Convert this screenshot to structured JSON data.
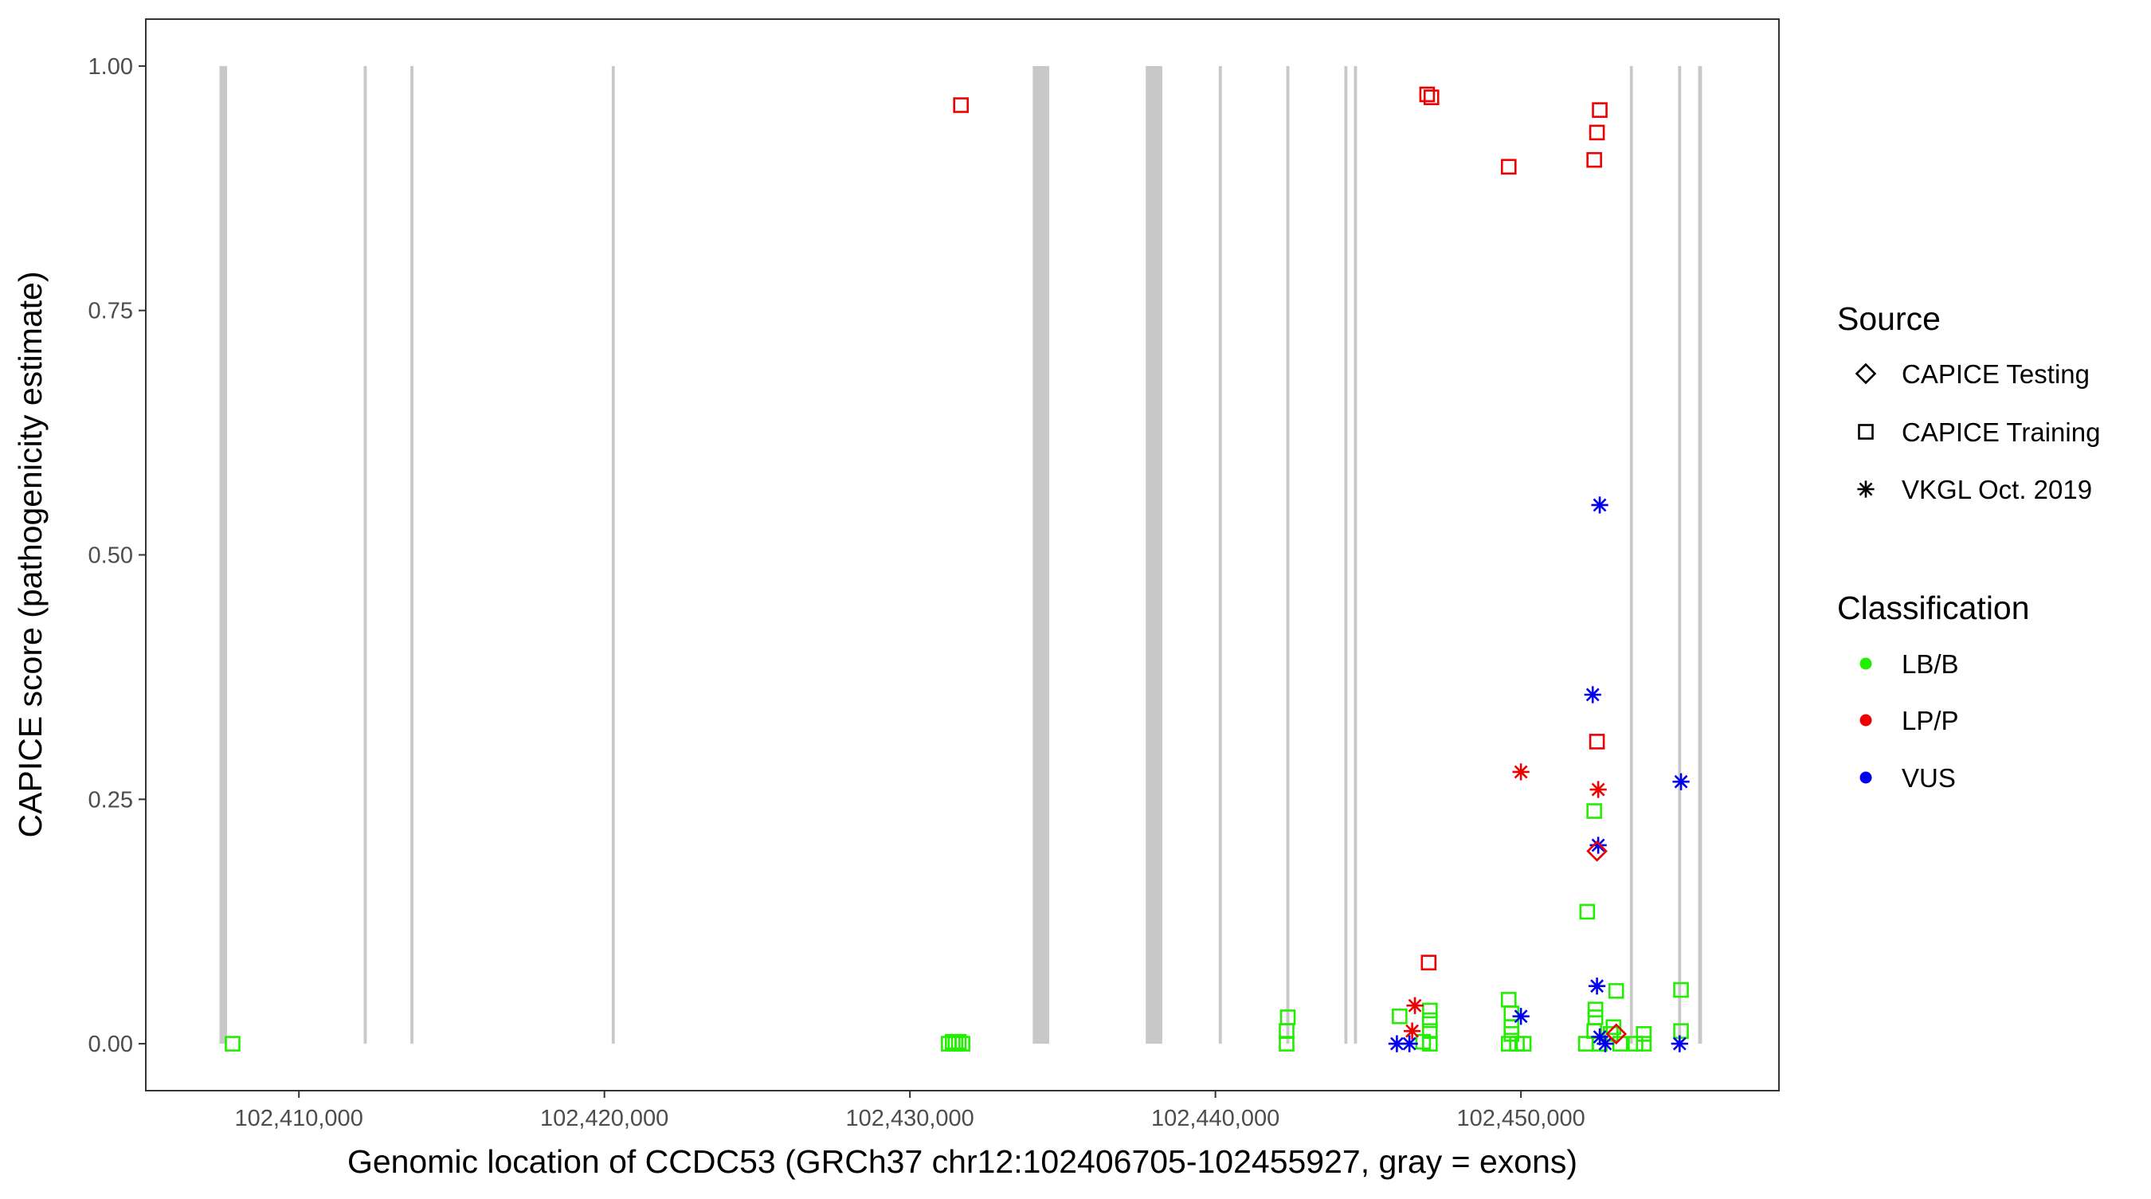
{
  "chart_data": {
    "type": "scatter",
    "xlabel": "Genomic location of CCDC53 (GRCh37 chr12:102406705-102455927, gray = exons)",
    "ylabel": "CAPICE score (pathogenicity estimate)",
    "xlim": [
      102404988,
      102458446
    ],
    "ylim": [
      -0.048,
      1.048
    ],
    "x_ticks": [
      102410000,
      102420000,
      102430000,
      102440000,
      102450000
    ],
    "x_tick_labels": [
      "102,410,000",
      "102,420,000",
      "102,430,000",
      "102,440,000",
      "102,450,000"
    ],
    "y_ticks": [
      0,
      0.25,
      0.5,
      0.75,
      1.0
    ],
    "y_tick_labels": [
      "0.00",
      "0.25",
      "0.50",
      "0.75",
      "1.00"
    ],
    "grid": false,
    "exons": [
      [
        102407400,
        102407650
      ],
      [
        102412120,
        102412220
      ],
      [
        102413650,
        102413750
      ],
      [
        102420240,
        102420340
      ],
      [
        102434020,
        102434560
      ],
      [
        102437720,
        102438260
      ],
      [
        102440110,
        102440210
      ],
      [
        102442320,
        102442420
      ],
      [
        102444220,
        102444320
      ],
      [
        102444535,
        102444635
      ],
      [
        102453565,
        102453665
      ],
      [
        102455145,
        102455245
      ],
      [
        102455800,
        102455927
      ]
    ],
    "colors": {
      "LB/B": "#22ee00",
      "LP/P": "#ee0000",
      "VUS": "#0000ee",
      "exon": "#c8c8c8"
    },
    "legend": {
      "placement": "right",
      "source_title": "Source",
      "source_items": [
        {
          "label": "CAPICE Testing",
          "shape": "diamond"
        },
        {
          "label": "CAPICE Training",
          "shape": "square"
        },
        {
          "label": "VKGL Oct. 2019",
          "shape": "asterisk"
        }
      ],
      "class_title": "Classification",
      "class_items": [
        {
          "label": "LB/B"
        },
        {
          "label": "LP/P"
        },
        {
          "label": "VUS"
        }
      ]
    },
    "points": [
      {
        "x": 102407830,
        "y": 0.0,
        "s": "square",
        "c": "LB/B"
      },
      {
        "x": 102431270,
        "y": 0.0,
        "s": "square",
        "c": "LB/B"
      },
      {
        "x": 102431400,
        "y": 0.002,
        "s": "square",
        "c": "LB/B"
      },
      {
        "x": 102431490,
        "y": 0.0,
        "s": "square",
        "c": "LB/B"
      },
      {
        "x": 102431600,
        "y": 0.002,
        "s": "square",
        "c": "LB/B"
      },
      {
        "x": 102431720,
        "y": 0.0,
        "s": "square",
        "c": "LB/B"
      },
      {
        "x": 102431670,
        "y": 0.96,
        "s": "square",
        "c": "LP/P"
      },
      {
        "x": 102442330,
        "y": 0.0,
        "s": "square",
        "c": "LB/B"
      },
      {
        "x": 102442330,
        "y": 0.013,
        "s": "square",
        "c": "LB/B"
      },
      {
        "x": 102442370,
        "y": 0.027,
        "s": "square",
        "c": "LB/B"
      },
      {
        "x": 102446030,
        "y": 0.028,
        "s": "square",
        "c": "LB/B"
      },
      {
        "x": 102446930,
        "y": 0.971,
        "s": "square",
        "c": "LP/P"
      },
      {
        "x": 102447070,
        "y": 0.968,
        "s": "square",
        "c": "LP/P"
      },
      {
        "x": 102446980,
        "y": 0.083,
        "s": "square",
        "c": "LP/P"
      },
      {
        "x": 102447020,
        "y": 0.034,
        "s": "square",
        "c": "LB/B"
      },
      {
        "x": 102447020,
        "y": 0.024,
        "s": "square",
        "c": "LB/B"
      },
      {
        "x": 102447020,
        "y": 0.013,
        "s": "square",
        "c": "LB/B"
      },
      {
        "x": 102447020,
        "y": 0.0,
        "s": "square",
        "c": "LB/B"
      },
      {
        "x": 102446800,
        "y": 0.002,
        "s": "square",
        "c": "LB/B"
      },
      {
        "x": 102449600,
        "y": 0.897,
        "s": "square",
        "c": "LP/P"
      },
      {
        "x": 102449600,
        "y": 0.045,
        "s": "square",
        "c": "LB/B"
      },
      {
        "x": 102449690,
        "y": 0.031,
        "s": "square",
        "c": "LB/B"
      },
      {
        "x": 102449690,
        "y": 0.017,
        "s": "square",
        "c": "LB/B"
      },
      {
        "x": 102449690,
        "y": 0.01,
        "s": "square",
        "c": "LB/B"
      },
      {
        "x": 102449600,
        "y": 0.0,
        "s": "square",
        "c": "LB/B"
      },
      {
        "x": 102449870,
        "y": 0.0,
        "s": "square",
        "c": "LB/B"
      },
      {
        "x": 102450090,
        "y": 0.0,
        "s": "square",
        "c": "LB/B"
      },
      {
        "x": 102446530,
        "y": 0.039,
        "s": "asterisk",
        "c": "LP/P"
      },
      {
        "x": 102446440,
        "y": 0.013,
        "s": "asterisk",
        "c": "LP/P"
      },
      {
        "x": 102445940,
        "y": 0.0,
        "s": "asterisk",
        "c": "VUS"
      },
      {
        "x": 102446350,
        "y": 0.0,
        "s": "asterisk",
        "c": "VUS"
      },
      {
        "x": 102450000,
        "y": 0.278,
        "s": "asterisk",
        "c": "LP/P"
      },
      {
        "x": 102450000,
        "y": 0.028,
        "s": "asterisk",
        "c": "VUS"
      },
      {
        "x": 102452580,
        "y": 0.955,
        "s": "square",
        "c": "LP/P"
      },
      {
        "x": 102452490,
        "y": 0.932,
        "s": "square",
        "c": "LP/P"
      },
      {
        "x": 102452400,
        "y": 0.904,
        "s": "square",
        "c": "LP/P"
      },
      {
        "x": 102452580,
        "y": 0.551,
        "s": "asterisk",
        "c": "VUS"
      },
      {
        "x": 102452350,
        "y": 0.357,
        "s": "asterisk",
        "c": "VUS"
      },
      {
        "x": 102452490,
        "y": 0.309,
        "s": "square",
        "c": "LP/P"
      },
      {
        "x": 102452530,
        "y": 0.26,
        "s": "asterisk",
        "c": "LP/P"
      },
      {
        "x": 102452400,
        "y": 0.238,
        "s": "square",
        "c": "LB/B"
      },
      {
        "x": 102452530,
        "y": 0.203,
        "s": "asterisk",
        "c": "VUS"
      },
      {
        "x": 102452490,
        "y": 0.197,
        "s": "diamond",
        "c": "LP/P"
      },
      {
        "x": 102452170,
        "y": 0.135,
        "s": "square",
        "c": "LB/B"
      },
      {
        "x": 102452490,
        "y": 0.059,
        "s": "asterisk",
        "c": "VUS"
      },
      {
        "x": 102453120,
        "y": 0.054,
        "s": "square",
        "c": "LB/B"
      },
      {
        "x": 102452440,
        "y": 0.035,
        "s": "square",
        "c": "LB/B"
      },
      {
        "x": 102452440,
        "y": 0.027,
        "s": "square",
        "c": "LB/B"
      },
      {
        "x": 102452400,
        "y": 0.013,
        "s": "square",
        "c": "LB/B"
      },
      {
        "x": 102453030,
        "y": 0.017,
        "s": "square",
        "c": "LB/B"
      },
      {
        "x": 102452940,
        "y": 0.01,
        "s": "square",
        "c": "LB/B"
      },
      {
        "x": 102452125,
        "y": 0.0,
        "s": "square",
        "c": "LB/B"
      },
      {
        "x": 102452580,
        "y": 0.0,
        "s": "square",
        "c": "LB/B"
      },
      {
        "x": 102453250,
        "y": 0.0,
        "s": "square",
        "c": "LB/B"
      },
      {
        "x": 102452760,
        "y": 0.0,
        "s": "asterisk",
        "c": "VUS"
      },
      {
        "x": 102452580,
        "y": 0.007,
        "s": "asterisk",
        "c": "VUS"
      },
      {
        "x": 102453120,
        "y": 0.01,
        "s": "diamond",
        "c": "LP/P"
      },
      {
        "x": 102454020,
        "y": 0.01,
        "s": "square",
        "c": "LB/B"
      },
      {
        "x": 102454020,
        "y": 0.0,
        "s": "square",
        "c": "LB/B"
      },
      {
        "x": 102453750,
        "y": 0.0,
        "s": "square",
        "c": "LB/B"
      },
      {
        "x": 102455240,
        "y": 0.055,
        "s": "square",
        "c": "LB/B"
      },
      {
        "x": 102455240,
        "y": 0.013,
        "s": "square",
        "c": "LB/B"
      },
      {
        "x": 102455195,
        "y": 0.0,
        "s": "asterisk",
        "c": "VUS"
      },
      {
        "x": 102455240,
        "y": 0.268,
        "s": "asterisk",
        "c": "VUS"
      }
    ]
  }
}
